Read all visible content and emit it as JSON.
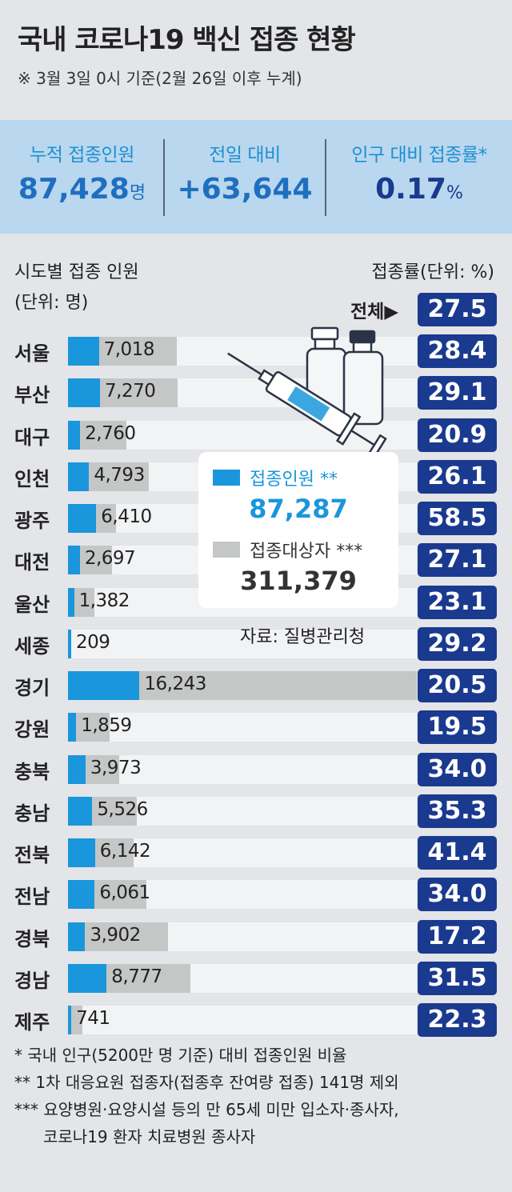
{
  "title": "국내 코로나19 백신 접종 현황",
  "subtitle": "※ 3월 3일 0시 기준(2월 26일 이후 누계)",
  "summary": {
    "cumulative_label": "누적 접종인원",
    "cumulative_value": "87,428",
    "cumulative_unit": "명",
    "daily_label": "전일 대비",
    "daily_value": "+63,644",
    "rate_label": "인구 대비 접종률*",
    "rate_value": "0.17",
    "rate_unit": "%"
  },
  "headers": {
    "left_line1": "시도별 접종 인원",
    "left_line2": "(단위: 명)",
    "right": "접종률(단위: %)",
    "total_label": "전체▶",
    "total_rate": "27.5"
  },
  "legend": {
    "vaccinated_label": "접종인원 **",
    "vaccinated_value": "87,287",
    "target_label": "접종대상자 ***",
    "target_value": "311,379"
  },
  "source": "자료: 질병관리청",
  "colors": {
    "vaccinated": "#1a96dc",
    "target": "#c5c6c6",
    "rate_box": "#1a3a8f",
    "summary_bg": "#b9d7ee"
  },
  "chart_data": {
    "type": "bar",
    "categories": [
      "서울",
      "부산",
      "대구",
      "인천",
      "광주",
      "대전",
      "울산",
      "세종",
      "경기",
      "강원",
      "충북",
      "충남",
      "전북",
      "전남",
      "경북",
      "경남",
      "제주"
    ],
    "series": [
      {
        "name": "접종인원",
        "values": [
          7018,
          7270,
          2760,
          4793,
          6410,
          2697,
          1382,
          209,
          16243,
          1859,
          3973,
          5526,
          6142,
          6061,
          3902,
          8777,
          741
        ],
        "labels": [
          "7,018",
          "7,270",
          "2,760",
          "4,793",
          "6,410",
          "2,697",
          "1,382",
          "209",
          "16,243",
          "1,859",
          "3,973",
          "5,526",
          "6,142",
          "6,061",
          "3,902",
          "8,777",
          "741"
        ]
      },
      {
        "name": "접종대상자",
        "values": [
          24711,
          24983,
          13206,
          18364,
          10957,
          9952,
          5983,
          716,
          79235,
          9533,
          11685,
          15654,
          14836,
          17826,
          22686,
          27864,
          3323
        ]
      },
      {
        "name": "접종률",
        "values": [
          28.4,
          29.1,
          20.9,
          26.1,
          58.5,
          27.1,
          23.1,
          29.2,
          20.5,
          19.5,
          34.0,
          35.3,
          41.4,
          34.0,
          17.2,
          31.5,
          22.3
        ],
        "labels": [
          "28.4",
          "29.1",
          "20.9",
          "26.1",
          "58.5",
          "27.1",
          "23.1",
          "29.2",
          "20.5",
          "19.5",
          "34.0",
          "35.3",
          "41.4",
          "34.0",
          "17.2",
          "31.5",
          "22.3"
        ]
      }
    ],
    "total_rate": 27.5
  },
  "footnotes": {
    "f1": "* 국내 인구(5200만 명 기준) 대비 접종인원 비율",
    "f2": "** 1차 대응요원 접종자(접종후 잔여량 접종) 141명 제외",
    "f3a": "*** 요양병원·요양시설 등의 만 65세 미만 입소자·종사자,",
    "f3b": "코로나19 환자 치료병원 종사자"
  }
}
